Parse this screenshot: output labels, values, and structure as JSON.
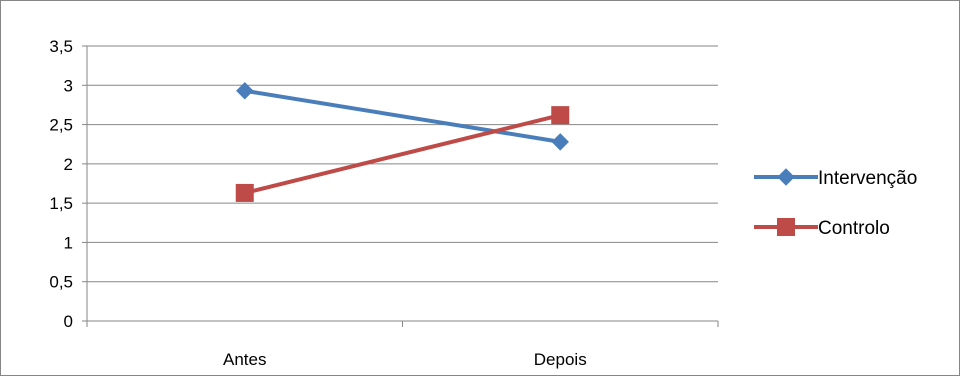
{
  "chart_data": {
    "type": "line",
    "title": "",
    "xlabel": "",
    "ylabel": "",
    "categories": [
      "Antes",
      "Depois"
    ],
    "ylim": [
      0,
      3.5
    ],
    "yticks": [
      "0",
      "0,5",
      "1",
      "1,5",
      "2",
      "2,5",
      "3",
      "3,5"
    ],
    "grid": true,
    "legend": "right",
    "series": [
      {
        "name": "Intervenção",
        "values": [
          2.93,
          2.28
        ],
        "color": "#4a7ebb",
        "marker": "diamond"
      },
      {
        "name": "Controlo",
        "values": [
          1.63,
          2.62
        ],
        "color": "#be4b48",
        "marker": "square"
      }
    ]
  }
}
